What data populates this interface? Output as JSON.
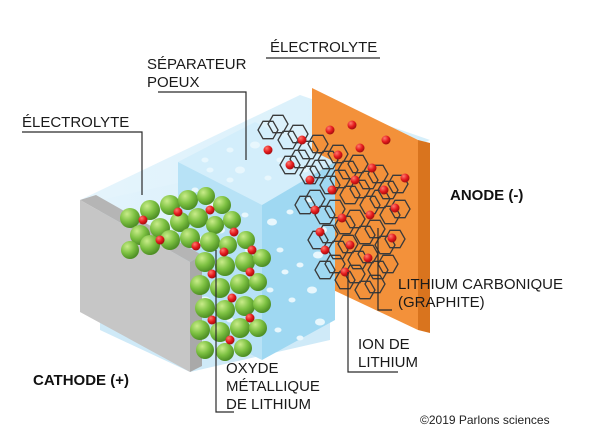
{
  "labels": {
    "separator_line1": "SÉPARATEUR",
    "separator_line2": "POEUX",
    "electrolyte_top": "ÉLECTROLYTE",
    "electrolyte_left": "ÉLECTROLYTE",
    "anode": "ANODE (-)",
    "graphite_line1": "LITHIUM CARBONIQUE",
    "graphite_line2": "(GRAPHITE)",
    "ion_line1": "ION DE",
    "ion_line2": "LITHIUM",
    "cathode": "CATHODE (+)",
    "oxide_line1": "OXYDE",
    "oxide_line2": "MÉTALLIQUE",
    "oxide_line3": "DE LITHIUM"
  },
  "copyright": "©2019 Parlons sciences",
  "colors": {
    "cathode_plate": "#c6c6c6",
    "cathode_plate_side": "#a9a9a9",
    "electrolyte_blue": "#cbe8f8",
    "separator_blue": "#a8dcf4",
    "anode_orange": "#f3913a",
    "anode_side": "#d9741e",
    "oxide_green": "#7dc142",
    "lithium_ion_red": "#e3191c",
    "graphite_line": "#3a3a3a"
  }
}
